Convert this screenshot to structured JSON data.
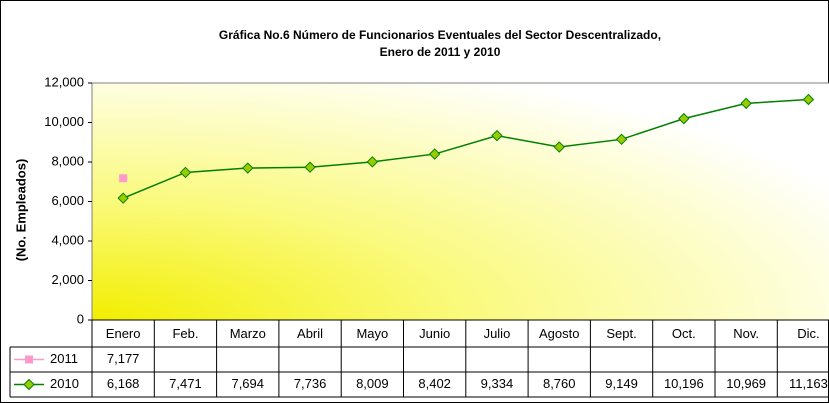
{
  "chart_data": {
    "type": "line",
    "title": [
      "Gráfica No.6 Número de Funcionarios Eventuales del Sector Descentralizado,",
      "Enero de 2011 y 2010"
    ],
    "y_label": "(No. Empleados)",
    "categories": [
      "Enero",
      "Feb.",
      "Marzo",
      "Abril",
      "Mayo",
      "Junio",
      "Julio",
      "Agosto",
      "Sept.",
      "Oct.",
      "Nov.",
      "Dic."
    ],
    "series": [
      {
        "name": "2011",
        "color": "#ff99cc",
        "marker": "square",
        "values": [
          7177,
          null,
          null,
          null,
          null,
          null,
          null,
          null,
          null,
          null,
          null,
          null
        ],
        "value_labels": [
          "7,177",
          null,
          null,
          null,
          null,
          null,
          null,
          null,
          null,
          null,
          null,
          null
        ]
      },
      {
        "name": "2010",
        "color": "#008000",
        "marker_color": "#99cc00",
        "marker": "diamond",
        "values": [
          6168,
          7471,
          7694,
          7736,
          8009,
          8402,
          9334,
          8760,
          9149,
          10196,
          10969,
          11163
        ],
        "value_labels": [
          "6,168",
          "7,471",
          "7,694",
          "7,736",
          "8,009",
          "8,402",
          "9,334",
          "8,760",
          "9,149",
          "10,196",
          "10,969",
          "11,163"
        ]
      }
    ],
    "ylim": [
      0,
      12000
    ],
    "yticks": [
      0,
      {
        "value": 2000,
        "label": "2,000"
      },
      {
        "value": 4000,
        "label": "4,000"
      },
      {
        "value": 6000,
        "label": "6,000"
      },
      {
        "value": 8000,
        "label": "8,000"
      },
      {
        "value": 10000,
        "label": "10,000"
      },
      {
        "value": 12000,
        "label": "12,000"
      }
    ],
    "grid": false
  }
}
